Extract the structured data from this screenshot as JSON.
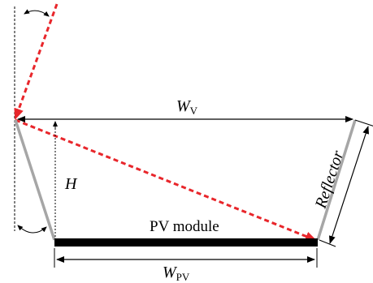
{
  "labels": {
    "wv_main": "W",
    "wv_sub": "V",
    "h": "H",
    "pv_module": "PV module",
    "wpv_main": "W",
    "wpv_sub": "PV",
    "reflector": "Reflector"
  },
  "colors": {
    "ray": "#e8262b",
    "reflector": "#a6a6a6",
    "line": "#000000"
  }
}
